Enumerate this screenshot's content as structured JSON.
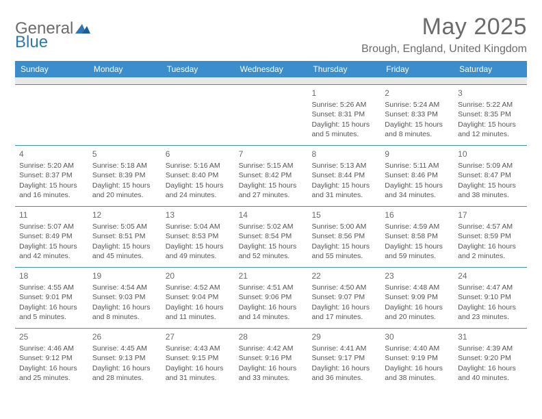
{
  "logo": {
    "part1": "General",
    "part2": "Blue"
  },
  "title": "May 2025",
  "location": "Brough, England, United Kingdom",
  "colors": {
    "header_bg": "#3c8dcc",
    "header_text": "#ffffff",
    "spacer_bg": "#e9e9e9",
    "border": "#3c8dcc",
    "text": "#555555",
    "logo_gray": "#6b6b6b",
    "logo_blue": "#2f77b4"
  },
  "day_headers": [
    "Sunday",
    "Monday",
    "Tuesday",
    "Wednesday",
    "Thursday",
    "Friday",
    "Saturday"
  ],
  "weeks": [
    [
      null,
      null,
      null,
      null,
      {
        "n": "1",
        "sr": "Sunrise: 5:26 AM",
        "ss": "Sunset: 8:31 PM",
        "d1": "Daylight: 15 hours",
        "d2": "and 5 minutes."
      },
      {
        "n": "2",
        "sr": "Sunrise: 5:24 AM",
        "ss": "Sunset: 8:33 PM",
        "d1": "Daylight: 15 hours",
        "d2": "and 8 minutes."
      },
      {
        "n": "3",
        "sr": "Sunrise: 5:22 AM",
        "ss": "Sunset: 8:35 PM",
        "d1": "Daylight: 15 hours",
        "d2": "and 12 minutes."
      }
    ],
    [
      {
        "n": "4",
        "sr": "Sunrise: 5:20 AM",
        "ss": "Sunset: 8:37 PM",
        "d1": "Daylight: 15 hours",
        "d2": "and 16 minutes."
      },
      {
        "n": "5",
        "sr": "Sunrise: 5:18 AM",
        "ss": "Sunset: 8:39 PM",
        "d1": "Daylight: 15 hours",
        "d2": "and 20 minutes."
      },
      {
        "n": "6",
        "sr": "Sunrise: 5:16 AM",
        "ss": "Sunset: 8:40 PM",
        "d1": "Daylight: 15 hours",
        "d2": "and 24 minutes."
      },
      {
        "n": "7",
        "sr": "Sunrise: 5:15 AM",
        "ss": "Sunset: 8:42 PM",
        "d1": "Daylight: 15 hours",
        "d2": "and 27 minutes."
      },
      {
        "n": "8",
        "sr": "Sunrise: 5:13 AM",
        "ss": "Sunset: 8:44 PM",
        "d1": "Daylight: 15 hours",
        "d2": "and 31 minutes."
      },
      {
        "n": "9",
        "sr": "Sunrise: 5:11 AM",
        "ss": "Sunset: 8:46 PM",
        "d1": "Daylight: 15 hours",
        "d2": "and 34 minutes."
      },
      {
        "n": "10",
        "sr": "Sunrise: 5:09 AM",
        "ss": "Sunset: 8:47 PM",
        "d1": "Daylight: 15 hours",
        "d2": "and 38 minutes."
      }
    ],
    [
      {
        "n": "11",
        "sr": "Sunrise: 5:07 AM",
        "ss": "Sunset: 8:49 PM",
        "d1": "Daylight: 15 hours",
        "d2": "and 42 minutes."
      },
      {
        "n": "12",
        "sr": "Sunrise: 5:05 AM",
        "ss": "Sunset: 8:51 PM",
        "d1": "Daylight: 15 hours",
        "d2": "and 45 minutes."
      },
      {
        "n": "13",
        "sr": "Sunrise: 5:04 AM",
        "ss": "Sunset: 8:53 PM",
        "d1": "Daylight: 15 hours",
        "d2": "and 49 minutes."
      },
      {
        "n": "14",
        "sr": "Sunrise: 5:02 AM",
        "ss": "Sunset: 8:54 PM",
        "d1": "Daylight: 15 hours",
        "d2": "and 52 minutes."
      },
      {
        "n": "15",
        "sr": "Sunrise: 5:00 AM",
        "ss": "Sunset: 8:56 PM",
        "d1": "Daylight: 15 hours",
        "d2": "and 55 minutes."
      },
      {
        "n": "16",
        "sr": "Sunrise: 4:59 AM",
        "ss": "Sunset: 8:58 PM",
        "d1": "Daylight: 15 hours",
        "d2": "and 59 minutes."
      },
      {
        "n": "17",
        "sr": "Sunrise: 4:57 AM",
        "ss": "Sunset: 8:59 PM",
        "d1": "Daylight: 16 hours",
        "d2": "and 2 minutes."
      }
    ],
    [
      {
        "n": "18",
        "sr": "Sunrise: 4:55 AM",
        "ss": "Sunset: 9:01 PM",
        "d1": "Daylight: 16 hours",
        "d2": "and 5 minutes."
      },
      {
        "n": "19",
        "sr": "Sunrise: 4:54 AM",
        "ss": "Sunset: 9:03 PM",
        "d1": "Daylight: 16 hours",
        "d2": "and 8 minutes."
      },
      {
        "n": "20",
        "sr": "Sunrise: 4:52 AM",
        "ss": "Sunset: 9:04 PM",
        "d1": "Daylight: 16 hours",
        "d2": "and 11 minutes."
      },
      {
        "n": "21",
        "sr": "Sunrise: 4:51 AM",
        "ss": "Sunset: 9:06 PM",
        "d1": "Daylight: 16 hours",
        "d2": "and 14 minutes."
      },
      {
        "n": "22",
        "sr": "Sunrise: 4:50 AM",
        "ss": "Sunset: 9:07 PM",
        "d1": "Daylight: 16 hours",
        "d2": "and 17 minutes."
      },
      {
        "n": "23",
        "sr": "Sunrise: 4:48 AM",
        "ss": "Sunset: 9:09 PM",
        "d1": "Daylight: 16 hours",
        "d2": "and 20 minutes."
      },
      {
        "n": "24",
        "sr": "Sunrise: 4:47 AM",
        "ss": "Sunset: 9:10 PM",
        "d1": "Daylight: 16 hours",
        "d2": "and 23 minutes."
      }
    ],
    [
      {
        "n": "25",
        "sr": "Sunrise: 4:46 AM",
        "ss": "Sunset: 9:12 PM",
        "d1": "Daylight: 16 hours",
        "d2": "and 25 minutes."
      },
      {
        "n": "26",
        "sr": "Sunrise: 4:45 AM",
        "ss": "Sunset: 9:13 PM",
        "d1": "Daylight: 16 hours",
        "d2": "and 28 minutes."
      },
      {
        "n": "27",
        "sr": "Sunrise: 4:43 AM",
        "ss": "Sunset: 9:15 PM",
        "d1": "Daylight: 16 hours",
        "d2": "and 31 minutes."
      },
      {
        "n": "28",
        "sr": "Sunrise: 4:42 AM",
        "ss": "Sunset: 9:16 PM",
        "d1": "Daylight: 16 hours",
        "d2": "and 33 minutes."
      },
      {
        "n": "29",
        "sr": "Sunrise: 4:41 AM",
        "ss": "Sunset: 9:17 PM",
        "d1": "Daylight: 16 hours",
        "d2": "and 36 minutes."
      },
      {
        "n": "30",
        "sr": "Sunrise: 4:40 AM",
        "ss": "Sunset: 9:19 PM",
        "d1": "Daylight: 16 hours",
        "d2": "and 38 minutes."
      },
      {
        "n": "31",
        "sr": "Sunrise: 4:39 AM",
        "ss": "Sunset: 9:20 PM",
        "d1": "Daylight: 16 hours",
        "d2": "and 40 minutes."
      }
    ]
  ]
}
